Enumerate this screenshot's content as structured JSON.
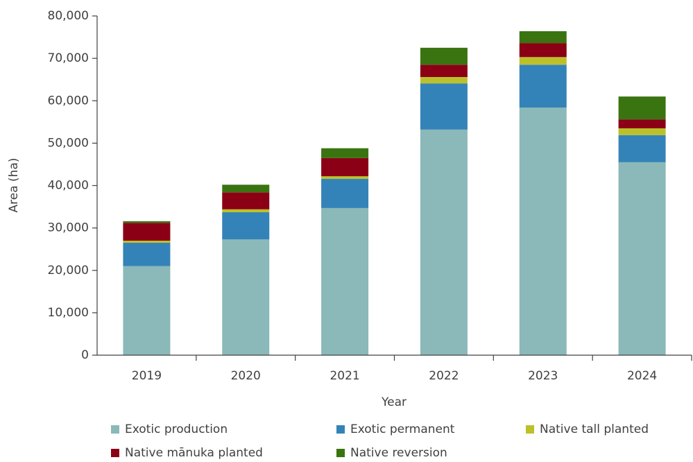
{
  "chart_data": {
    "type": "stacked_bar",
    "x_label": "Year",
    "y_label": "Area (ha)",
    "categories": [
      "2019",
      "2020",
      "2021",
      "2022",
      "2023",
      "2024"
    ],
    "series": [
      {
        "name": "Exotic production",
        "color": "#8bb8b8",
        "values": [
          21000,
          27300,
          34700,
          53200,
          58400,
          45500
        ]
      },
      {
        "name": "Exotic permanent",
        "color": "#3483b8",
        "values": [
          5500,
          6400,
          6900,
          10900,
          10100,
          6400
        ]
      },
      {
        "name": "Native tall planted",
        "color": "#bcc12a",
        "values": [
          500,
          700,
          600,
          1500,
          1800,
          1600
        ]
      },
      {
        "name": "Native mānuka planted",
        "color": "#8b0015",
        "values": [
          4200,
          4000,
          4300,
          2900,
          3300,
          2100
        ]
      },
      {
        "name": "Native reversion",
        "color": "#3a7410",
        "values": [
          400,
          1800,
          2300,
          4000,
          2800,
          5400
        ]
      }
    ],
    "ylim": [
      0,
      80000
    ],
    "yticks": [
      0,
      {
        "value": 10000,
        "label": "10,000"
      },
      {
        "value": 20000,
        "label": "20,000"
      },
      {
        "value": 30000,
        "label": "30,000"
      },
      {
        "value": 40000,
        "label": "40,000"
      },
      {
        "value": 50000,
        "label": "50,000"
      },
      {
        "value": 60000,
        "label": "60,000"
      },
      {
        "value": 70000,
        "label": "70,000"
      },
      {
        "value": 80000,
        "label": "80,000"
      }
    ],
    "legend": "bottom"
  }
}
